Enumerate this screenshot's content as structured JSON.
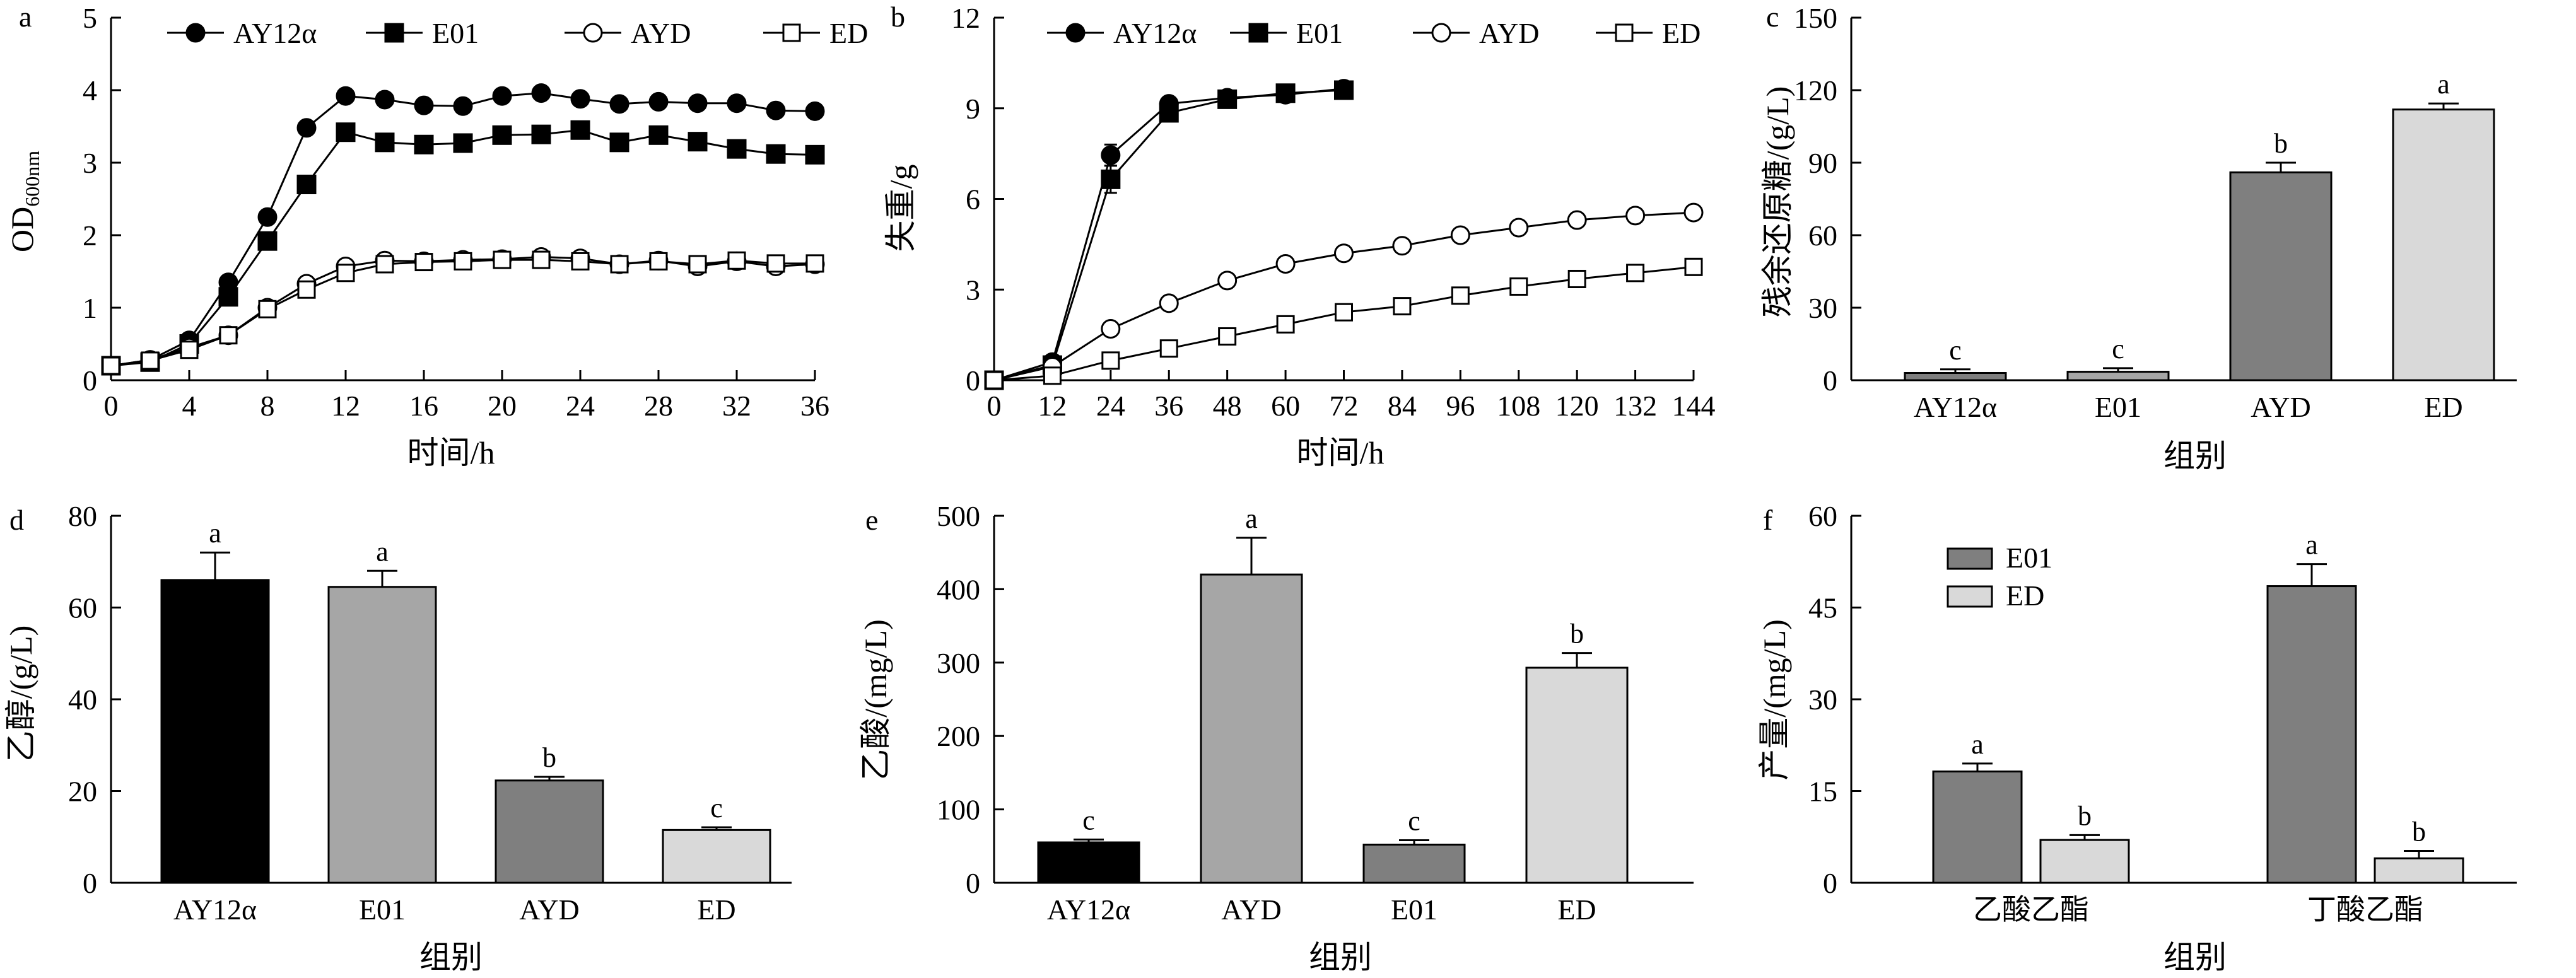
{
  "colors": {
    "AY12α": "#000000",
    "E01_dark": "#7f7f7f",
    "E01_mid": "#a6a6a6",
    "ED": "#d9d9d9",
    "AYD": "#7f7f7f"
  },
  "chart_data": [
    {
      "type": "line",
      "panel_label": "a",
      "title": "",
      "xlabel": "时间/h",
      "ylabel": "OD",
      "ylabel_sub": "600nm",
      "xlim": [
        0,
        36
      ],
      "ylim": [
        0,
        5
      ],
      "xticks": [
        "0",
        "4",
        "8",
        "12",
        "16",
        "20",
        "24",
        "28",
        "32",
        "36"
      ],
      "yticks": [
        "0",
        "1",
        "2",
        "3",
        "4",
        "5"
      ],
      "legend": "top",
      "x": [
        0,
        2,
        4,
        6,
        8,
        10,
        12,
        14,
        16,
        18,
        20,
        22,
        24,
        26,
        28,
        30,
        32,
        34,
        36
      ],
      "series": [
        {
          "name": "AY12α",
          "marker": "circle-filled",
          "values": [
            0.2,
            0.28,
            0.55,
            1.35,
            2.25,
            3.48,
            3.92,
            3.87,
            3.79,
            3.78,
            3.92,
            3.96,
            3.88,
            3.81,
            3.84,
            3.82,
            3.82,
            3.72,
            3.71
          ]
        },
        {
          "name": "E01",
          "marker": "square-filled",
          "values": [
            0.2,
            0.25,
            0.5,
            1.15,
            1.92,
            2.7,
            3.42,
            3.28,
            3.25,
            3.27,
            3.38,
            3.39,
            3.45,
            3.28,
            3.38,
            3.29,
            3.19,
            3.12,
            3.11
          ]
        },
        {
          "name": "AYD",
          "marker": "circle-open",
          "values": [
            0.2,
            0.28,
            0.45,
            0.62,
            1.0,
            1.33,
            1.57,
            1.65,
            1.64,
            1.66,
            1.67,
            1.7,
            1.68,
            1.6,
            1.65,
            1.57,
            1.64,
            1.57,
            1.6
          ]
        },
        {
          "name": "ED",
          "marker": "square-open",
          "values": [
            0.2,
            0.27,
            0.42,
            0.62,
            0.98,
            1.25,
            1.48,
            1.6,
            1.63,
            1.64,
            1.66,
            1.66,
            1.64,
            1.6,
            1.64,
            1.6,
            1.65,
            1.61,
            1.61
          ]
        }
      ]
    },
    {
      "type": "line",
      "panel_label": "b",
      "title": "",
      "xlabel": "时间/h",
      "ylabel": "失重/g",
      "xlim": [
        0,
        144
      ],
      "ylim": [
        0,
        12
      ],
      "xticks": [
        "0",
        "12",
        "24",
        "36",
        "48",
        "60",
        "72",
        "84",
        "96",
        "108",
        "120",
        "132",
        "144"
      ],
      "yticks": [
        "0",
        "3",
        "6",
        "9",
        "12"
      ],
      "legend": "top",
      "series": [
        {
          "name": "AY12α",
          "marker": "circle-filled",
          "x": [
            0,
            12,
            24,
            36,
            48,
            60,
            72
          ],
          "values": [
            0,
            0.6,
            7.45,
            9.15,
            9.35,
            9.45,
            9.65
          ],
          "errors": [
            0,
            0.05,
            0.35,
            0.15,
            0.1,
            0.1,
            0.1
          ]
        },
        {
          "name": "E01",
          "marker": "square-filled",
          "x": [
            0,
            12,
            24,
            36,
            48,
            60,
            72
          ],
          "values": [
            0,
            0.5,
            6.65,
            8.85,
            9.3,
            9.5,
            9.6
          ],
          "errors": [
            0,
            0.05,
            0.45,
            0.15,
            0.1,
            0.1,
            0.1
          ]
        },
        {
          "name": "AYD",
          "marker": "circle-open",
          "x": [
            0,
            12,
            24,
            36,
            48,
            60,
            72,
            84,
            96,
            108,
            120,
            132,
            144
          ],
          "values": [
            0,
            0.45,
            1.7,
            2.55,
            3.3,
            3.85,
            4.2,
            4.45,
            4.8,
            5.05,
            5.3,
            5.45,
            5.55
          ]
        },
        {
          "name": "ED",
          "marker": "square-open",
          "x": [
            0,
            12,
            24,
            36,
            48,
            60,
            72,
            84,
            96,
            108,
            120,
            132,
            144
          ],
          "values": [
            0,
            0.15,
            0.65,
            1.05,
            1.45,
            1.85,
            2.25,
            2.45,
            2.8,
            3.1,
            3.35,
            3.55,
            3.75
          ]
        }
      ]
    },
    {
      "type": "bar",
      "panel_label": "c",
      "title": "",
      "xlabel": "组别",
      "ylabel": "残余还原糖/(g/L)",
      "ylim": [
        0,
        150
      ],
      "yticks": [
        "0",
        "30",
        "60",
        "90",
        "120",
        "150"
      ],
      "categories": [
        "AY12α",
        "E01",
        "AYD",
        "ED"
      ],
      "values": [
        3,
        3.5,
        86,
        112
      ],
      "errors": [
        1.5,
        1.5,
        4,
        2.5
      ],
      "significance": [
        "c",
        "c",
        "b",
        "a"
      ],
      "bar_colors": [
        "#7f7f7f",
        "#a6a6a6",
        "#7f7f7f",
        "#d9d9d9"
      ]
    },
    {
      "type": "bar",
      "panel_label": "d",
      "title": "",
      "xlabel": "组别",
      "ylabel": "乙醇/(g/L)",
      "ylim": [
        0,
        80
      ],
      "yticks": [
        "0",
        "20",
        "40",
        "60",
        "80"
      ],
      "categories": [
        "AY12α",
        "E01",
        "AYD",
        "ED"
      ],
      "values": [
        66,
        64.5,
        22.3,
        11.5
      ],
      "errors": [
        6,
        3.5,
        0.8,
        0.6
      ],
      "significance": [
        "a",
        "a",
        "b",
        "c"
      ],
      "bar_colors": [
        "#000000",
        "#a6a6a6",
        "#7f7f7f",
        "#d9d9d9"
      ]
    },
    {
      "type": "bar",
      "panel_label": "e",
      "title": "",
      "xlabel": "组别",
      "ylabel": "乙酸/(mg/L)",
      "ylim": [
        0,
        500
      ],
      "yticks": [
        "0",
        "100",
        "200",
        "300",
        "400",
        "500"
      ],
      "categories": [
        "AY12α",
        "AYD",
        "E01",
        "ED"
      ],
      "values": [
        55,
        420,
        52,
        293
      ],
      "errors": [
        4,
        50,
        6,
        20
      ],
      "significance": [
        "c",
        "a",
        "c",
        "b"
      ],
      "bar_colors": [
        "#000000",
        "#a6a6a6",
        "#7f7f7f",
        "#d9d9d9"
      ]
    },
    {
      "type": "bar",
      "panel_label": "f",
      "title": "",
      "xlabel": "组别",
      "ylabel": "产量/(mg/L)",
      "ylim": [
        0,
        60
      ],
      "yticks": [
        "0",
        "15",
        "30",
        "45",
        "60"
      ],
      "categories": [
        "乙酸乙酯",
        "丁酸乙酯"
      ],
      "legend": "top-left",
      "series": [
        {
          "name": "E01",
          "color": "#7f7f7f",
          "values": [
            18.2,
            48.5
          ],
          "errors": [
            1.3,
            3.6
          ],
          "significance": [
            "a",
            "a"
          ]
        },
        {
          "name": "ED",
          "color": "#d9d9d9",
          "values": [
            7,
            4
          ],
          "errors": [
            0.8,
            1.2
          ],
          "significance": [
            "b",
            "b"
          ]
        }
      ]
    }
  ]
}
